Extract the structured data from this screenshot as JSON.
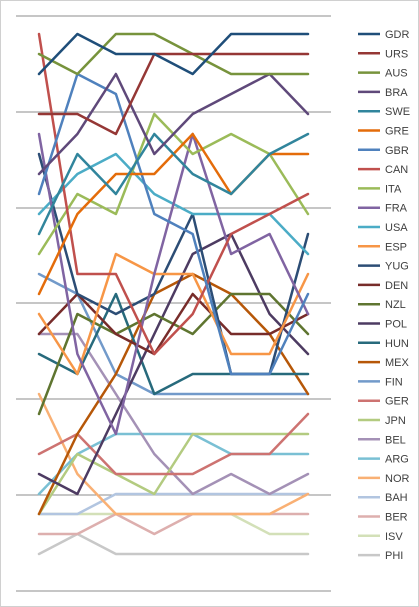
{
  "chart_data": {
    "type": "line",
    "chart_kind": "bump chart (rank over time)",
    "x": [
      1,
      2,
      3,
      4,
      5,
      6,
      7,
      8
    ],
    "ylim": [
      1,
      27
    ],
    "y_inverted": true,
    "grid": "horizontal",
    "legend_position": "right",
    "series": [
      {
        "name": "GDR",
        "color": "#1f4e79",
        "values": [
          3,
          1,
          2,
          2,
          3,
          1,
          1,
          1
        ]
      },
      {
        "name": "URS",
        "color": "#953735",
        "values": [
          5,
          5,
          6,
          2,
          2,
          2,
          2,
          2
        ]
      },
      {
        "name": "AUS",
        "color": "#77933c",
        "values": [
          2,
          3,
          1,
          1,
          2,
          3,
          3,
          3
        ]
      },
      {
        "name": "BRA",
        "color": "#5f497a",
        "values": [
          8,
          6,
          3,
          7,
          5,
          4,
          3,
          5
        ]
      },
      {
        "name": "SWE",
        "color": "#31859c",
        "values": [
          11,
          7,
          9,
          6,
          8,
          9,
          7,
          6
        ]
      },
      {
        "name": "GRE",
        "color": "#e46c0a",
        "values": [
          14,
          10,
          8,
          8,
          6,
          9,
          7,
          7
        ]
      },
      {
        "name": "GBR",
        "color": "#4f81bd",
        "values": [
          9,
          3,
          4,
          10,
          11,
          18,
          18,
          14
        ]
      },
      {
        "name": "CAN",
        "color": "#c0504d",
        "values": [
          1,
          13,
          13,
          17,
          15,
          11,
          10,
          9
        ]
      },
      {
        "name": "ITA",
        "color": "#9bbb59",
        "values": [
          12,
          9,
          10,
          5,
          7,
          6,
          7,
          10
        ]
      },
      {
        "name": "FRA",
        "color": "#8064a2",
        "values": [
          6,
          17,
          21,
          13,
          6,
          12,
          11,
          15
        ]
      },
      {
        "name": "USA",
        "color": "#4bacc6",
        "values": [
          10,
          8,
          7,
          9,
          10,
          10,
          10,
          12
        ]
      },
      {
        "name": "ESP",
        "color": "#f79646",
        "values": [
          15,
          18,
          12,
          13,
          13,
          17,
          17,
          13
        ]
      },
      {
        "name": "YUG",
        "color": "#2c4d75",
        "values": [
          7,
          14,
          15,
          14,
          10,
          18,
          18,
          11
        ]
      },
      {
        "name": "DEN",
        "color": "#772c2a",
        "values": [
          16,
          14,
          16,
          17,
          14,
          16,
          16,
          15
        ]
      },
      {
        "name": "NZL",
        "color": "#5f7530",
        "values": [
          20,
          15,
          16,
          15,
          16,
          14,
          14,
          16
        ]
      },
      {
        "name": "POL",
        "color": "#4d3b62",
        "values": [
          23,
          24,
          20,
          16,
          12,
          11,
          15,
          17
        ]
      },
      {
        "name": "HUN",
        "color": "#276a7c",
        "values": [
          17,
          18,
          14,
          19,
          18,
          18,
          18,
          18
        ]
      },
      {
        "name": "MEX",
        "color": "#b65708",
        "values": [
          25,
          21,
          18,
          14,
          13,
          14,
          16,
          19
        ]
      },
      {
        "name": "FIN",
        "color": "#729aca",
        "values": [
          13,
          14,
          18,
          19,
          19,
          19,
          19,
          19
        ]
      },
      {
        "name": "GER",
        "color": "#cd7371",
        "values": [
          22,
          21,
          23,
          23,
          23,
          22,
          22,
          20
        ]
      },
      {
        "name": "JPN",
        "color": "#b3cb80",
        "values": [
          25,
          22,
          23,
          24,
          21,
          21,
          21,
          21
        ]
      },
      {
        "name": "BEL",
        "color": "#a491b6",
        "values": [
          16,
          16,
          19,
          22,
          24,
          23,
          24,
          23
        ]
      },
      {
        "name": "ARG",
        "color": "#7ac0d4",
        "values": [
          24,
          22,
          21,
          21,
          21,
          22,
          22,
          22
        ]
      },
      {
        "name": "NOR",
        "color": "#f9b074",
        "values": [
          19,
          23,
          25,
          25,
          25,
          25,
          25,
          24
        ]
      },
      {
        "name": "BAH",
        "color": "#b2c5e0",
        "values": [
          25,
          25,
          24,
          24,
          24,
          24,
          24,
          24
        ]
      },
      {
        "name": "BER",
        "color": "#ddafae",
        "values": [
          26,
          26,
          25,
          26,
          25,
          25,
          25,
          25
        ]
      },
      {
        "name": "ISV",
        "color": "#d3e0b8",
        "values": [
          25,
          25,
          25,
          25,
          25,
          25,
          26,
          26
        ]
      },
      {
        "name": "PHI",
        "color": "#c8c8c8",
        "values": [
          27,
          26,
          27,
          27,
          27,
          27,
          27,
          27
        ]
      }
    ]
  }
}
